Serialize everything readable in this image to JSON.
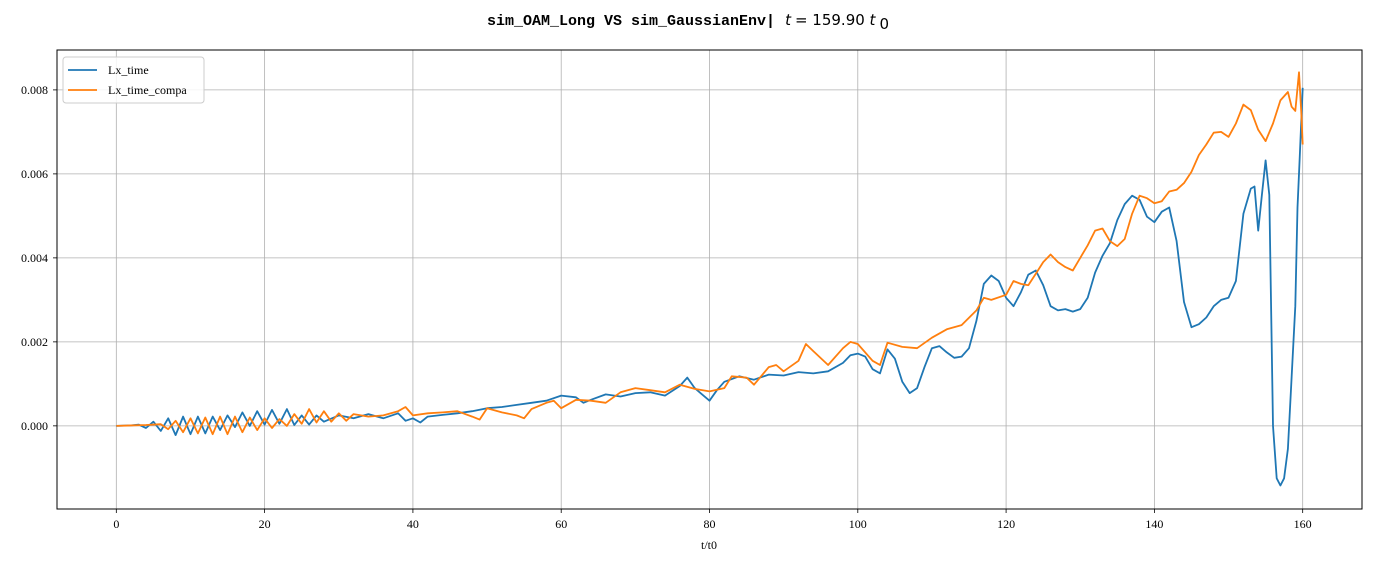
{
  "chart_data": {
    "type": "line",
    "title_code": "sim_OAM_Long VS sim_GaussianEnv|",
    "title_var": "t",
    "title_eq": " = 159.90 ",
    "title_unit": "t",
    "title_sub": "0",
    "xlabel": "t/t0",
    "ylabel": "",
    "xlim": [
      -8,
      168
    ],
    "ylim": [
      -0.00198,
      0.00895
    ],
    "xticks": [
      0,
      20,
      40,
      60,
      80,
      100,
      120,
      140,
      160
    ],
    "xtick_labels": [
      "0",
      "20",
      "40",
      "60",
      "80",
      "100",
      "120",
      "140",
      "160"
    ],
    "yticks": [
      0.0,
      0.002,
      0.004,
      0.006,
      0.008
    ],
    "ytick_labels": [
      "0.000",
      "0.002",
      "0.004",
      "0.006",
      "0.008"
    ],
    "grid": true,
    "legend": "upper-left",
    "series": [
      {
        "name": "Lx_time",
        "color": "#1f77b4",
        "points": [
          [
            0,
            0.0
          ],
          [
            2,
            1e-05
          ],
          [
            3,
            3e-05
          ],
          [
            4,
            -5e-05
          ],
          [
            5,
            0.0001
          ],
          [
            6,
            -0.00012
          ],
          [
            7,
            0.00018
          ],
          [
            8,
            -0.00022
          ],
          [
            9,
            0.00022
          ],
          [
            10,
            -0.0002
          ],
          [
            11,
            0.00022
          ],
          [
            12,
            -0.00018
          ],
          [
            13,
            0.00022
          ],
          [
            14,
            -0.0001
          ],
          [
            15,
            0.00025
          ],
          [
            16,
            -3e-05
          ],
          [
            17,
            0.00032
          ],
          [
            18,
            0.0
          ],
          [
            19,
            0.00035
          ],
          [
            20,
            3e-05
          ],
          [
            21,
            0.00038
          ],
          [
            22,
            5e-05
          ],
          [
            23,
            0.0004
          ],
          [
            24,
            2e-05
          ],
          [
            25,
            0.00025
          ],
          [
            26,
            3e-05
          ],
          [
            27,
            0.00025
          ],
          [
            28,
            0.0001
          ],
          [
            30,
            0.00025
          ],
          [
            32,
            0.00018
          ],
          [
            34,
            0.00028
          ],
          [
            36,
            0.00018
          ],
          [
            38,
            0.0003
          ],
          [
            39,
            0.00012
          ],
          [
            40,
            0.00018
          ],
          [
            41,
            8e-05
          ],
          [
            42,
            0.00022
          ],
          [
            44,
            0.00026
          ],
          [
            46,
            0.0003
          ],
          [
            48,
            0.00035
          ],
          [
            50,
            0.00042
          ],
          [
            52,
            0.00045
          ],
          [
            54,
            0.0005
          ],
          [
            56,
            0.00055
          ],
          [
            58,
            0.0006
          ],
          [
            60,
            0.00072
          ],
          [
            62,
            0.00068
          ],
          [
            63,
            0.00055
          ],
          [
            64,
            0.00062
          ],
          [
            66,
            0.00075
          ],
          [
            68,
            0.0007
          ],
          [
            70,
            0.00078
          ],
          [
            72,
            0.0008
          ],
          [
            74,
            0.00072
          ],
          [
            76,
            0.00095
          ],
          [
            77,
            0.00115
          ],
          [
            78,
            0.0009
          ],
          [
            79,
            0.00075
          ],
          [
            80,
            0.0006
          ],
          [
            81,
            0.00085
          ],
          [
            82,
            0.00105
          ],
          [
            84,
            0.00118
          ],
          [
            86,
            0.0011
          ],
          [
            88,
            0.00122
          ],
          [
            90,
            0.0012
          ],
          [
            92,
            0.00128
          ],
          [
            94,
            0.00125
          ],
          [
            96,
            0.0013
          ],
          [
            98,
            0.0015
          ],
          [
            99,
            0.00168
          ],
          [
            100,
            0.00172
          ],
          [
            101,
            0.00165
          ],
          [
            102,
            0.00135
          ],
          [
            103,
            0.00125
          ],
          [
            104,
            0.00182
          ],
          [
            105,
            0.0016
          ],
          [
            106,
            0.00105
          ],
          [
            107,
            0.00078
          ],
          [
            108,
            0.0009
          ],
          [
            109,
            0.0014
          ],
          [
            110,
            0.00185
          ],
          [
            111,
            0.0019
          ],
          [
            112,
            0.00175
          ],
          [
            113,
            0.00162
          ],
          [
            114,
            0.00165
          ],
          [
            115,
            0.00185
          ],
          [
            116,
            0.0025
          ],
          [
            117,
            0.00338
          ],
          [
            118,
            0.00358
          ],
          [
            119,
            0.00345
          ],
          [
            120,
            0.00305
          ],
          [
            121,
            0.00285
          ],
          [
            122,
            0.00318
          ],
          [
            123,
            0.0036
          ],
          [
            124,
            0.0037
          ],
          [
            125,
            0.00335
          ],
          [
            126,
            0.00285
          ],
          [
            127,
            0.00275
          ],
          [
            128,
            0.00278
          ],
          [
            129,
            0.00272
          ],
          [
            130,
            0.00278
          ],
          [
            131,
            0.00305
          ],
          [
            132,
            0.00365
          ],
          [
            133,
            0.00405
          ],
          [
            134,
            0.00435
          ],
          [
            135,
            0.0049
          ],
          [
            136,
            0.00528
          ],
          [
            137,
            0.00548
          ],
          [
            138,
            0.00538
          ],
          [
            139,
            0.00498
          ],
          [
            140,
            0.00485
          ],
          [
            141,
            0.0051
          ],
          [
            142,
            0.0052
          ],
          [
            143,
            0.0044
          ],
          [
            144,
            0.00295
          ],
          [
            145,
            0.00235
          ],
          [
            146,
            0.00242
          ],
          [
            147,
            0.00258
          ],
          [
            148,
            0.00285
          ],
          [
            149,
            0.003
          ],
          [
            150,
            0.00305
          ],
          [
            151,
            0.00345
          ],
          [
            152,
            0.00505
          ],
          [
            153,
            0.00565
          ],
          [
            153.5,
            0.0057
          ],
          [
            154,
            0.00465
          ],
          [
            154.5,
            0.0055
          ],
          [
            155,
            0.00632
          ],
          [
            155.5,
            0.0055
          ],
          [
            156,
            0.0
          ],
          [
            156.5,
            -0.00125
          ],
          [
            157,
            -0.00142
          ],
          [
            157.5,
            -0.00125
          ],
          [
            158,
            -0.00055
          ],
          [
            158.5,
            0.00115
          ],
          [
            159,
            0.00285
          ],
          [
            159.3,
            0.0052
          ],
          [
            159.6,
            0.00638
          ],
          [
            160,
            0.00805
          ]
        ]
      },
      {
        "name": "Lx_time_compa",
        "color": "#ff7f0e",
        "points": [
          [
            0,
            0.0
          ],
          [
            4,
            2e-05
          ],
          [
            6,
            4e-05
          ],
          [
            7,
            -8e-05
          ],
          [
            8,
            0.00012
          ],
          [
            9,
            -0.00015
          ],
          [
            10,
            0.00018
          ],
          [
            11,
            -0.00018
          ],
          [
            12,
            0.0002
          ],
          [
            13,
            -0.0002
          ],
          [
            14,
            0.00022
          ],
          [
            15,
            -0.0002
          ],
          [
            16,
            0.00022
          ],
          [
            17,
            -0.00015
          ],
          [
            18,
            0.0002
          ],
          [
            19,
            -0.0001
          ],
          [
            20,
            0.00018
          ],
          [
            21,
            -5e-05
          ],
          [
            22,
            0.00016
          ],
          [
            23,
            0.0
          ],
          [
            24,
            0.00028
          ],
          [
            25,
            5e-05
          ],
          [
            26,
            0.0004
          ],
          [
            27,
            8e-05
          ],
          [
            28,
            0.00035
          ],
          [
            29,
            0.0001
          ],
          [
            30,
            0.0003
          ],
          [
            31,
            0.00012
          ],
          [
            32,
            0.00028
          ],
          [
            34,
            0.00022
          ],
          [
            36,
            0.00025
          ],
          [
            38,
            0.00035
          ],
          [
            39,
            0.00045
          ],
          [
            40,
            0.00025
          ],
          [
            42,
            0.0003
          ],
          [
            44,
            0.00032
          ],
          [
            46,
            0.00035
          ],
          [
            48,
            0.00022
          ],
          [
            49,
            0.00015
          ],
          [
            50,
            0.00042
          ],
          [
            52,
            0.00032
          ],
          [
            54,
            0.00025
          ],
          [
            55,
            0.00018
          ],
          [
            56,
            0.0004
          ],
          [
            58,
            0.00055
          ],
          [
            59,
            0.0006
          ],
          [
            60,
            0.00042
          ],
          [
            62,
            0.00062
          ],
          [
            64,
            0.0006
          ],
          [
            66,
            0.00055
          ],
          [
            68,
            0.0008
          ],
          [
            70,
            0.0009
          ],
          [
            72,
            0.00085
          ],
          [
            74,
            0.0008
          ],
          [
            76,
            0.00098
          ],
          [
            78,
            0.00088
          ],
          [
            80,
            0.00082
          ],
          [
            82,
            0.0009
          ],
          [
            83,
            0.00118
          ],
          [
            85,
            0.00115
          ],
          [
            86,
            0.00098
          ],
          [
            88,
            0.0014
          ],
          [
            89,
            0.00145
          ],
          [
            90,
            0.0013
          ],
          [
            92,
            0.00155
          ],
          [
            93,
            0.00195
          ],
          [
            94,
            0.00178
          ],
          [
            96,
            0.00145
          ],
          [
            98,
            0.00185
          ],
          [
            99,
            0.002
          ],
          [
            100,
            0.00195
          ],
          [
            102,
            0.00155
          ],
          [
            103,
            0.00145
          ],
          [
            104,
            0.00198
          ],
          [
            106,
            0.00188
          ],
          [
            108,
            0.00185
          ],
          [
            110,
            0.0021
          ],
          [
            112,
            0.0023
          ],
          [
            114,
            0.0024
          ],
          [
            116,
            0.00275
          ],
          [
            117,
            0.00305
          ],
          [
            118,
            0.003
          ],
          [
            120,
            0.00312
          ],
          [
            121,
            0.00345
          ],
          [
            122,
            0.00338
          ],
          [
            123,
            0.00335
          ],
          [
            124,
            0.00362
          ],
          [
            125,
            0.0039
          ],
          [
            126,
            0.00408
          ],
          [
            127,
            0.0039
          ],
          [
            128,
            0.00378
          ],
          [
            129,
            0.0037
          ],
          [
            130,
            0.004
          ],
          [
            131,
            0.0043
          ],
          [
            132,
            0.00465
          ],
          [
            133,
            0.0047
          ],
          [
            134,
            0.0044
          ],
          [
            135,
            0.00428
          ],
          [
            136,
            0.00445
          ],
          [
            137,
            0.00505
          ],
          [
            138,
            0.00548
          ],
          [
            139,
            0.00542
          ],
          [
            140,
            0.0053
          ],
          [
            141,
            0.00535
          ],
          [
            142,
            0.00558
          ],
          [
            143,
            0.00562
          ],
          [
            144,
            0.00578
          ],
          [
            145,
            0.00605
          ],
          [
            146,
            0.00645
          ],
          [
            147,
            0.0067
          ],
          [
            148,
            0.00698
          ],
          [
            149,
            0.007
          ],
          [
            150,
            0.00688
          ],
          [
            151,
            0.0072
          ],
          [
            152,
            0.00765
          ],
          [
            153,
            0.00752
          ],
          [
            154,
            0.00705
          ],
          [
            155,
            0.00678
          ],
          [
            156,
            0.0072
          ],
          [
            157,
            0.00775
          ],
          [
            158,
            0.00795
          ],
          [
            158.5,
            0.0076
          ],
          [
            159,
            0.0075
          ],
          [
            159.5,
            0.00842
          ],
          [
            159.8,
            0.0075
          ],
          [
            160,
            0.0067
          ]
        ]
      }
    ]
  }
}
